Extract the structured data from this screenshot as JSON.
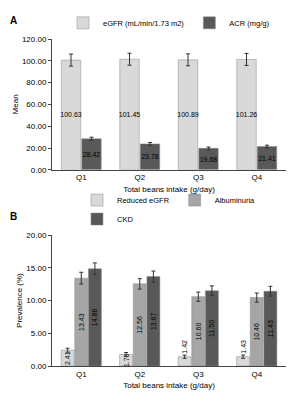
{
  "chart_data": [
    {
      "type": "bar",
      "title": "A",
      "x_label": "Total beans intake (g/day)",
      "y_label": "Mean",
      "categories": [
        "Q1",
        "Q2",
        "Q3",
        "Q4"
      ],
      "series": [
        {
          "name": "eGFR (mL/min/1.73 m2)",
          "color": "#d9d9d9",
          "values": [
            100.63,
            101.45,
            100.89,
            101.26
          ],
          "errors": [
            5.5,
            5.5,
            5.5,
            5.5
          ]
        },
        {
          "name": "ACR (mg/g)",
          "color": "#595959",
          "values": [
            28.42,
            23.78,
            19.68,
            21.41
          ],
          "errors": [
            1.5,
            1.3,
            1.2,
            1.2
          ]
        }
      ],
      "ylim": [
        0,
        120
      ],
      "yticks": [
        {
          "value": 0,
          "label": "0.00"
        },
        {
          "value": 20,
          "label": "20.00"
        },
        {
          "value": 40,
          "label": "40.00"
        },
        {
          "value": 60,
          "label": "60.00"
        },
        {
          "value": 80,
          "label": "80.00"
        },
        {
          "value": 100,
          "label": "100.00"
        },
        {
          "value": 120,
          "label": "120.00"
        }
      ],
      "grid": false,
      "legend": "top",
      "data_labels": true
    },
    {
      "type": "bar",
      "title": "B",
      "x_label": "Total beans intake (g/day)",
      "y_label": "Prevalence (%)",
      "categories": [
        "Q1",
        "Q2",
        "Q3",
        "Q4"
      ],
      "series": [
        {
          "name": "Reduced eGFR",
          "color": "#d9d9d9",
          "values": [
            2.41,
            1.76,
            1.42,
            1.43
          ],
          "value_labels": [
            "2.41",
            "1.76",
            "1.42",
            "1.43"
          ],
          "errors": [
            0.3,
            0.3,
            0.25,
            0.25
          ]
        },
        {
          "name": "Albuminuria",
          "color": "#a6a6a6",
          "values": [
            13.43,
            12.56,
            10.6,
            10.46
          ],
          "value_labels": [
            "13.43",
            "12.56",
            "10.60",
            "10.46"
          ],
          "errors": [
            0.9,
            0.8,
            0.7,
            0.7
          ]
        },
        {
          "name": "CKD",
          "color": "#595959",
          "values": [
            14.86,
            13.67,
            11.5,
            11.43
          ],
          "value_labels": [
            "14.86",
            "13.67",
            "11.50",
            "11.43"
          ],
          "errors": [
            0.9,
            0.85,
            0.75,
            0.75
          ]
        }
      ],
      "ylim": [
        0,
        20
      ],
      "yticks": [
        {
          "value": 0,
          "label": "0.00"
        },
        {
          "value": 5,
          "label": "5.00"
        },
        {
          "value": 10,
          "label": "10.00"
        },
        {
          "value": 15,
          "label": "15.00"
        },
        {
          "value": 20,
          "label": "20.00"
        }
      ],
      "grid": false,
      "legend": "top",
      "data_labels": true
    }
  ]
}
